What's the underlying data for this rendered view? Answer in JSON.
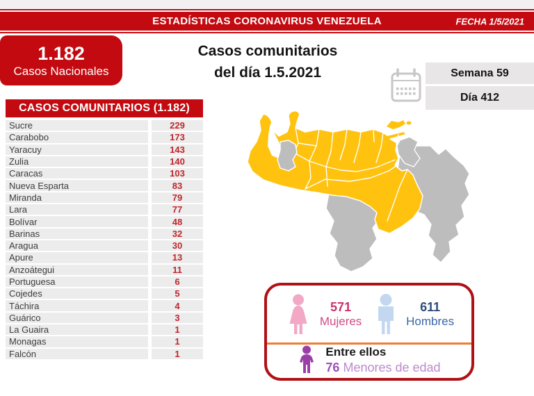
{
  "topbar": {
    "title": "ESTADÍSTICAS CORONAVIRUS VENEZUELA",
    "date": "FECHA 1/5/2021"
  },
  "national_box": {
    "value": "1.182",
    "label": "Casos Nacionales"
  },
  "main_title": {
    "line1": "Casos comunitarios",
    "line2": "del día 1.5.2021"
  },
  "period": {
    "week": "Semana 59",
    "day": "Día 412"
  },
  "community_table": {
    "header": "CASOS COMUNITARIOS (1.182)",
    "rows": [
      {
        "state": "Sucre",
        "cases": "229"
      },
      {
        "state": "Carabobo",
        "cases": "173"
      },
      {
        "state": "Yaracuy",
        "cases": "143"
      },
      {
        "state": "Zulia",
        "cases": "140"
      },
      {
        "state": "Caracas",
        "cases": "103"
      },
      {
        "state": "Nueva Esparta",
        "cases": "83"
      },
      {
        "state": "Miranda",
        "cases": "79"
      },
      {
        "state": "Lara",
        "cases": "77"
      },
      {
        "state": "Bolívar",
        "cases": "48"
      },
      {
        "state": "Barinas",
        "cases": "32"
      },
      {
        "state": "Aragua",
        "cases": "30"
      },
      {
        "state": "Apure",
        "cases": "13"
      },
      {
        "state": "Anzoátegui",
        "cases": "11"
      },
      {
        "state": "Portuguesa",
        "cases": "6"
      },
      {
        "state": "Cojedes",
        "cases": "5"
      },
      {
        "state": "Táchira",
        "cases": "4"
      },
      {
        "state": "Guárico",
        "cases": "3"
      },
      {
        "state": "La Guaira",
        "cases": "1"
      },
      {
        "state": "Monagas",
        "cases": "1"
      },
      {
        "state": "Falcón",
        "cases": "1"
      }
    ]
  },
  "gender_box": {
    "women": {
      "value": "571",
      "label": "Mujeres"
    },
    "men": {
      "value": "611",
      "label": "Hombres"
    },
    "minors": {
      "intro": "Entre ellos",
      "value": "76",
      "label": "Menores de edad"
    }
  },
  "map": {
    "region": "Venezuela",
    "highlight_color": "#FFC20E",
    "inactive_color": "#BDBDBD"
  },
  "colors": {
    "primary_red": "#C20A10",
    "table_number_red": "#BE262C",
    "row_gray": "#EDECEC",
    "period_gray": "#E8E6E7",
    "divider_orange": "#ED7D31",
    "women_pink": "#C9336E",
    "men_blue": "#2F4B7C",
    "minors_purple": "#9B51B5",
    "box_border_red": "#B01116"
  },
  "chart_data": {
    "type": "table",
    "title": "Casos comunitarios del día 1.5.2021",
    "date": "1/5/2021",
    "week": 59,
    "day": 412,
    "total_national_cases": 1182,
    "total_community_cases": 1182,
    "categories": [
      "Sucre",
      "Carabobo",
      "Yaracuy",
      "Zulia",
      "Caracas",
      "Nueva Esparta",
      "Miranda",
      "Lara",
      "Bolívar",
      "Barinas",
      "Aragua",
      "Apure",
      "Anzoátegui",
      "Portuguesa",
      "Cojedes",
      "Táchira",
      "Guárico",
      "La Guaira",
      "Monagas",
      "Falcón"
    ],
    "values": [
      229,
      173,
      143,
      140,
      103,
      83,
      79,
      77,
      48,
      32,
      30,
      13,
      11,
      6,
      5,
      4,
      3,
      1,
      1,
      1
    ],
    "gender": {
      "mujeres": 571,
      "hombres": 611,
      "menores_de_edad": 76
    }
  }
}
